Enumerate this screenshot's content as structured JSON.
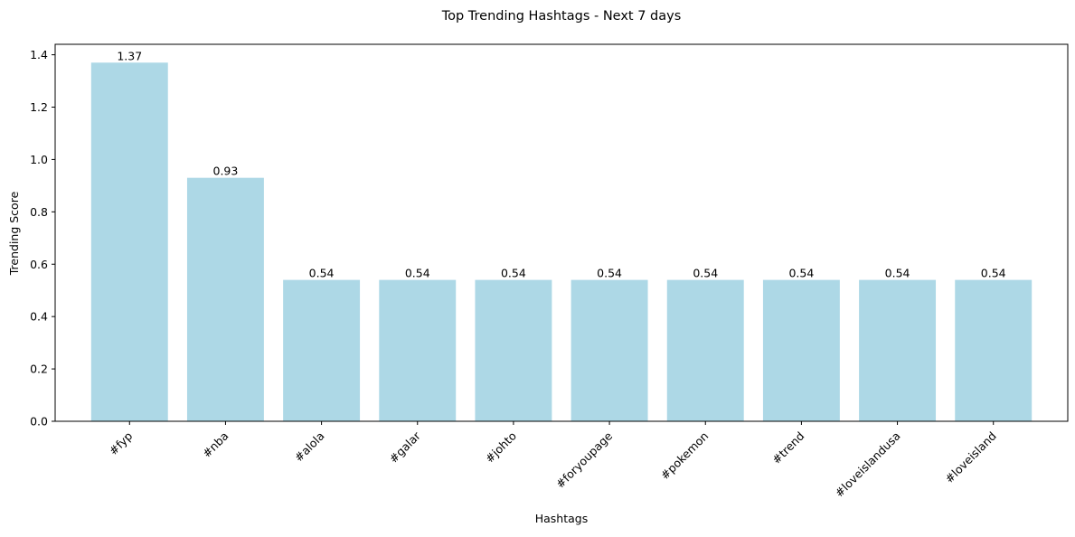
{
  "chart_data": {
    "type": "bar",
    "title": "Top Trending Hashtags - Next 7 days",
    "xlabel": "Hashtags",
    "ylabel": "Trending Score",
    "categories": [
      "#fyp",
      "#nba",
      "#alola",
      "#galar",
      "#johto",
      "#foryoupage",
      "#pokemon",
      "#trend",
      "#loveislandusa",
      "#loveisland"
    ],
    "values": [
      1.37,
      0.93,
      0.54,
      0.54,
      0.54,
      0.54,
      0.54,
      0.54,
      0.54,
      0.54
    ],
    "value_labels": [
      "1.37",
      "0.93",
      "0.54",
      "0.54",
      "0.54",
      "0.54",
      "0.54",
      "0.54",
      "0.54",
      "0.54"
    ],
    "ylim": [
      0,
      1.44
    ],
    "yticks": [
      0.0,
      0.2,
      0.4,
      0.6,
      0.8,
      1.0,
      1.2,
      1.4
    ],
    "ytick_labels": [
      "0.0",
      "0.2",
      "0.4",
      "0.6",
      "0.8",
      "1.0",
      "1.2",
      "1.4"
    ],
    "grid": false,
    "bar_color": "#add8e6"
  }
}
